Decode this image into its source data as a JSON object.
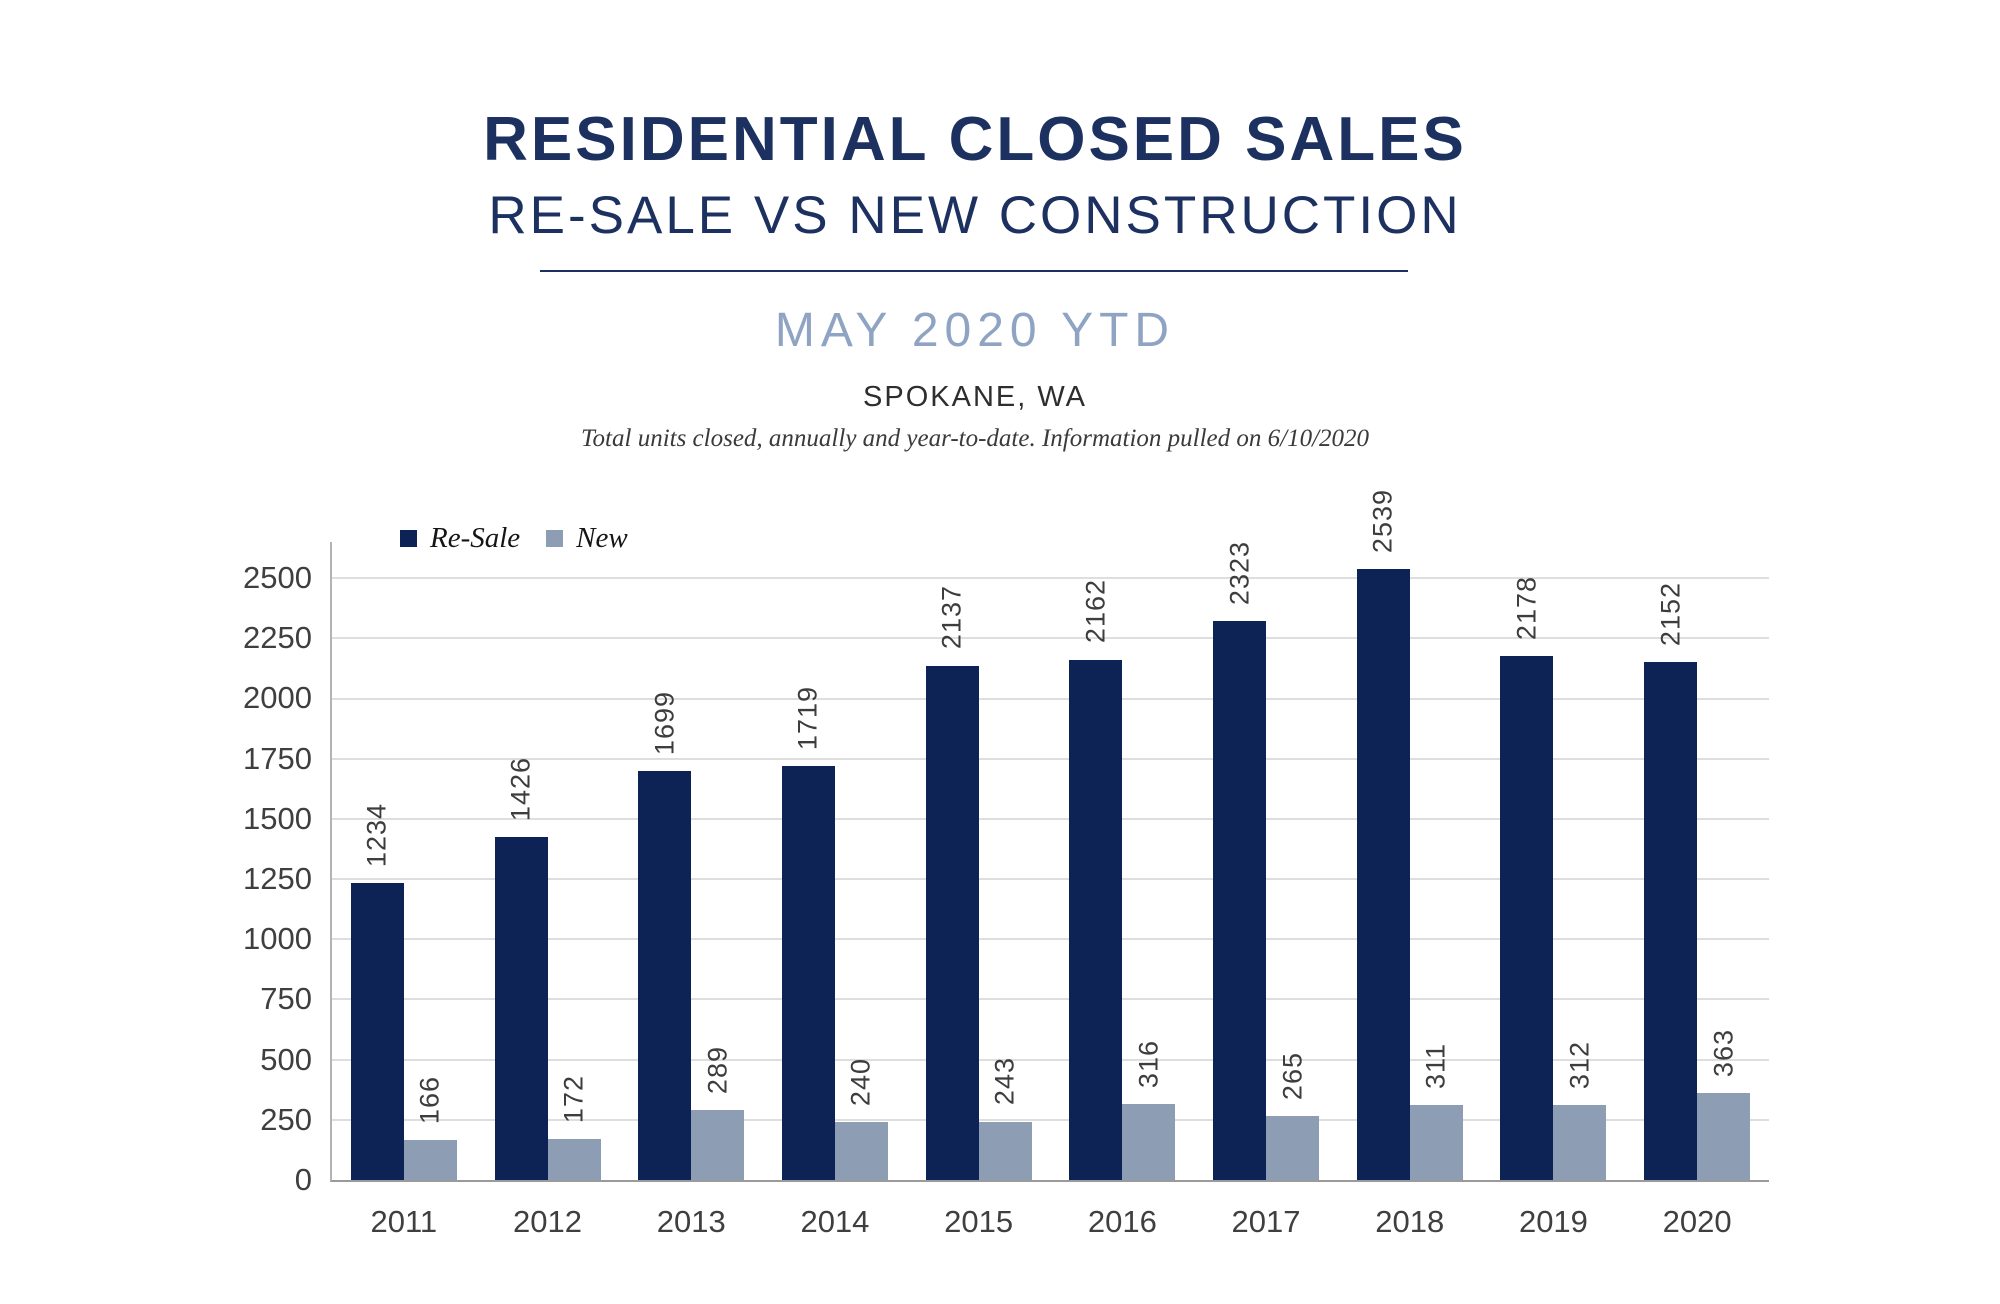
{
  "header": {
    "title": "RESIDENTIAL CLOSED SALES",
    "subtitle": "RE-SALE VS NEW CONSTRUCTION",
    "period": "MAY 2020 YTD",
    "location": "SPOKANE, WA",
    "note": "Total units closed, annually and year-to-date.  Information pulled on 6/10/2020"
  },
  "colors": {
    "title_navy": "#1d3160",
    "period_blue": "#8fa4c3",
    "resale_bar": "#0e2355",
    "new_bar": "#8d9db4",
    "gridline": "#dedede",
    "axis": "#9a9a9a",
    "value_label_text": "#3d3d3d"
  },
  "chart_data": {
    "type": "bar",
    "title": "RESIDENTIAL CLOSED SALES — RE-SALE VS NEW CONSTRUCTION",
    "subtitle": "MAY 2020 YTD — SPOKANE, WA",
    "categories": [
      "2011",
      "2012",
      "2013",
      "2014",
      "2015",
      "2016",
      "2017",
      "2018",
      "2019",
      "2020"
    ],
    "series": [
      {
        "name": "Re-Sale",
        "color": "#0e2355",
        "values": [
          1234,
          1426,
          1699,
          1719,
          2137,
          2162,
          2323,
          2539,
          2178,
          2152
        ]
      },
      {
        "name": "New",
        "color": "#8d9db4",
        "values": [
          166,
          172,
          289,
          240,
          243,
          316,
          265,
          311,
          312,
          363
        ]
      }
    ],
    "xlabel": "",
    "ylabel": "",
    "ylim": [
      0,
      2650
    ],
    "yticks": [
      0,
      250,
      500,
      750,
      1000,
      1250,
      1500,
      1750,
      2000,
      2250,
      2500
    ],
    "grid": true,
    "legend_position": "top-left",
    "value_labels": "rotated 90 degrees above bars"
  }
}
